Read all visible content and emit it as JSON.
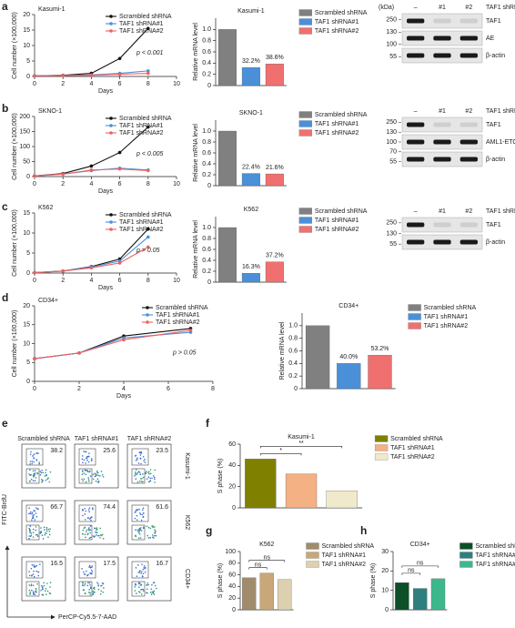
{
  "panel_labels": [
    "a",
    "b",
    "c",
    "d",
    "e",
    "f",
    "g",
    "h"
  ],
  "chart_data": [
    {
      "type": "line",
      "title": "Kasumi-1",
      "x_label": "Days",
      "y_label": "Cell number (×100,000)",
      "x": [
        0,
        2,
        4,
        6,
        8
      ],
      "xlim": [
        0,
        10
      ],
      "xticks": [
        0,
        2,
        4,
        6,
        8,
        10
      ],
      "ylim": [
        0,
        20
      ],
      "yticks": [
        0,
        5,
        10,
        15,
        20
      ],
      "legend": "upper right",
      "annotation": "p < 0.001",
      "series": [
        {
          "name": "Scrambled shRNA",
          "color": "#111111",
          "values": [
            0.2,
            0.4,
            1.0,
            5.8,
            15.5
          ]
        },
        {
          "name": "TAF1 shRNA#1",
          "color": "#4a90d9",
          "values": [
            0.2,
            0.3,
            0.5,
            1.0,
            1.8
          ]
        },
        {
          "name": "TAF1 shRNA#2",
          "color": "#f06060",
          "values": [
            0.2,
            0.3,
            0.4,
            0.7,
            1.0
          ]
        }
      ]
    },
    {
      "type": "bar",
      "title": "Kasumi-1",
      "y_label": "Relative mRNA level",
      "ylim": [
        0,
        1.2
      ],
      "yticks": [
        0,
        0.2,
        0.4,
        0.6,
        0.8,
        {
          "value": 1,
          "label": "1.0"
        }
      ],
      "legend": "right",
      "series": [
        {
          "name": "Scrambled shRNA",
          "color": "#808080",
          "values": [
            1.0
          ]
        },
        {
          "name": "TAF1 shRNA#1",
          "color": "#4a90d9",
          "values": [
            0.322
          ],
          "value_labels": [
            "32.2%"
          ]
        },
        {
          "name": "TAF1 shRNA#2",
          "color": "#f07070",
          "values": [
            0.386
          ],
          "value_labels": [
            "38.6%"
          ]
        }
      ]
    },
    {
      "type": "line",
      "title": "SKNO-1",
      "x_label": "Days",
      "y_label": "Cell number (×100,000)",
      "x": [
        0,
        2,
        4,
        6,
        8
      ],
      "xlim": [
        0,
        10
      ],
      "xticks": [
        0,
        2,
        4,
        6,
        8,
        10
      ],
      "ylim": [
        0,
        200
      ],
      "yticks": [
        0,
        50,
        100,
        150,
        200
      ],
      "legend": "upper right",
      "annotation": "p < 0.005",
      "series": [
        {
          "name": "Scrambled shRNA",
          "color": "#111111",
          "values": [
            2,
            10,
            35,
            80,
            165
          ]
        },
        {
          "name": "TAF1 shRNA#1",
          "color": "#4a90d9",
          "values": [
            2,
            8,
            20,
            28,
            22
          ]
        },
        {
          "name": "TAF1 shRNA#2",
          "color": "#f06060",
          "values": [
            2,
            8,
            22,
            25,
            20
          ]
        }
      ]
    },
    {
      "type": "bar",
      "title": "SKNO-1",
      "y_label": "Relative mRNA level",
      "ylim": [
        0,
        1.2
      ],
      "yticks": [
        0,
        0.2,
        0.4,
        0.6,
        0.8,
        {
          "value": 1,
          "label": "1.0"
        }
      ],
      "legend": "right",
      "series": [
        {
          "name": "Scrambled shRNA",
          "color": "#808080",
          "values": [
            1.0
          ]
        },
        {
          "name": "TAF1 shRNA#1",
          "color": "#4a90d9",
          "values": [
            0.224
          ],
          "value_labels": [
            "22.4%"
          ]
        },
        {
          "name": "TAF1 shRNA#2",
          "color": "#f07070",
          "values": [
            0.216
          ],
          "value_labels": [
            "21.6%"
          ]
        }
      ]
    },
    {
      "type": "line",
      "title": "K562",
      "x_label": "Days",
      "y_label": "Cell number (×100,000)",
      "x": [
        0,
        2,
        4,
        6,
        8
      ],
      "xlim": [
        0,
        10
      ],
      "xticks": [
        0,
        2,
        4,
        6,
        8,
        10
      ],
      "ylim": [
        0,
        15
      ],
      "yticks": [
        0,
        5,
        10,
        15
      ],
      "legend": "upper right",
      "annotation": "p > 0.05",
      "series": [
        {
          "name": "Scrambled shRNA",
          "color": "#111111",
          "values": [
            0.1,
            0.5,
            1.6,
            3.5,
            11
          ]
        },
        {
          "name": "TAF1 shRNA#1",
          "color": "#4a90d9",
          "values": [
            0.1,
            0.5,
            1.5,
            3,
            9
          ]
        },
        {
          "name": "TAF1 shRNA#2",
          "color": "#f06060",
          "values": [
            0.1,
            0.5,
            1.3,
            2.5,
            6.5
          ]
        }
      ]
    },
    {
      "type": "bar",
      "title": "K562",
      "y_label": "Relative mRNA level",
      "ylim": [
        0,
        1.2
      ],
      "yticks": [
        0,
        0.2,
        0.4,
        0.6,
        0.8,
        {
          "value": 1,
          "label": "1.0"
        }
      ],
      "legend": "right",
      "series": [
        {
          "name": "Scrambled shRNA",
          "color": "#808080",
          "values": [
            1.0
          ]
        },
        {
          "name": "TAF1 shRNA#1",
          "color": "#4a90d9",
          "values": [
            0.163
          ],
          "value_labels": [
            "16.3%"
          ]
        },
        {
          "name": "TAF1 shRNA#2",
          "color": "#f07070",
          "values": [
            0.372
          ],
          "value_labels": [
            "37.2%"
          ]
        }
      ]
    },
    {
      "type": "line",
      "title": "CD34+",
      "x_label": "Days",
      "y_label": "Cell number (×100,000)",
      "x": [
        0,
        2,
        4,
        7
      ],
      "xlim": [
        0,
        8
      ],
      "xticks": [
        0,
        2,
        4,
        6,
        8
      ],
      "ylim": [
        0,
        20
      ],
      "yticks": [
        0,
        5,
        10,
        15,
        20
      ],
      "legend": "upper right",
      "annotation": "p > 0.05",
      "series": [
        {
          "name": "Scrambled shRNA",
          "color": "#111111",
          "values": [
            6,
            7.5,
            12,
            14
          ]
        },
        {
          "name": "TAF1 shRNA#1",
          "color": "#4a90d9",
          "values": [
            6,
            7.5,
            11.5,
            13
          ]
        },
        {
          "name": "TAF1 shRNA#2",
          "color": "#f06060",
          "values": [
            6,
            7.5,
            11,
            13.5
          ]
        }
      ]
    },
    {
      "type": "bar",
      "title": "CD34+",
      "y_label": "Relative mRNA level",
      "ylim": [
        0,
        1.2
      ],
      "yticks": [
        0,
        0.2,
        0.4,
        0.6,
        0.8,
        {
          "value": 1,
          "label": "1.0"
        }
      ],
      "legend": "right",
      "series": [
        {
          "name": "Scrambled shRNA",
          "color": "#808080",
          "values": [
            1.0
          ]
        },
        {
          "name": "TAF1 shRNA#1",
          "color": "#4a90d9",
          "values": [
            0.4
          ],
          "value_labels": [
            "40.0%"
          ]
        },
        {
          "name": "TAF1 shRNA#2",
          "color": "#f07070",
          "values": [
            0.532
          ],
          "value_labels": [
            "53.2%"
          ]
        }
      ]
    },
    {
      "type": "bar",
      "title": "Kasumi-1",
      "y_label": "S phase (%)",
      "ylim": [
        0,
        60
      ],
      "yticks": [
        0,
        20,
        40,
        60
      ],
      "legend": "right",
      "annotations": [
        "*",
        "**"
      ],
      "series": [
        {
          "name": "Scrambled shRNA",
          "color": "#808000",
          "values": [
            46
          ]
        },
        {
          "name": "TAF1 shRNA#1",
          "color": "#f4b183",
          "values": [
            32
          ]
        },
        {
          "name": "TAF1 shRNA#2",
          "color": "#efeacb",
          "values": [
            16
          ]
        }
      ]
    },
    {
      "type": "bar",
      "title": "K562",
      "y_label": "S phase (%)",
      "ylim": [
        0,
        100
      ],
      "yticks": [
        0,
        20,
        40,
        60,
        80,
        100
      ],
      "legend": "right",
      "annotations": [
        "ns",
        "ns"
      ],
      "series": [
        {
          "name": "Scrambled shRNA",
          "color": "#a08c6c",
          "values": [
            55
          ]
        },
        {
          "name": "TAF1 shRNA#1",
          "color": "#c8a878",
          "values": [
            63
          ]
        },
        {
          "name": "TAF1 shRNA#2",
          "color": "#ddd0b0",
          "values": [
            52
          ]
        }
      ]
    },
    {
      "type": "bar",
      "title": "CD34+",
      "y_label": "S phase (%)",
      "ylim": [
        0,
        30
      ],
      "yticks": [
        0,
        10,
        20,
        30
      ],
      "legend": "right",
      "annotations": [
        "ns",
        "ns"
      ],
      "series": [
        {
          "name": "Scrambled shRNA",
          "color": "#0c4f28",
          "values": [
            14
          ]
        },
        {
          "name": "TAF1 shRNA#1",
          "color": "#2f7f7f",
          "values": [
            11
          ]
        },
        {
          "name": "TAF1 shRNA#2",
          "color": "#3cb88c",
          "values": [
            16
          ]
        }
      ]
    }
  ],
  "blots": [
    {
      "unit": "(kDa)",
      "header": "TAF1 shRNA",
      "lanes": [
        "–",
        "#1",
        "#2"
      ],
      "markers": [
        "250",
        "130",
        "100",
        "55"
      ],
      "proteins": [
        "TAF1",
        "AE",
        "β-actin"
      ]
    },
    {
      "header": "TAF1 shRNA",
      "lanes": [
        "–",
        "#1",
        "#2"
      ],
      "markers": [
        "250",
        "130",
        "100",
        "70",
        "55"
      ],
      "proteins": [
        "TAF1",
        "AML1-ETO",
        "β-actin"
      ]
    },
    {
      "header": "TAF1 shRNA",
      "lanes": [
        "–",
        "#1",
        "#2"
      ],
      "markers": [
        "250",
        "130",
        "55"
      ],
      "proteins": [
        "TAF1",
        "β-actin"
      ]
    }
  ],
  "flow": {
    "columns": [
      "Scrambled shRNA",
      "TAF1 shRNA#1",
      "TAF1 shRNA#2"
    ],
    "rows": [
      "Kasumi-1",
      "K562",
      "CD34+"
    ],
    "s_phase": [
      [
        "38.2",
        "25.6",
        "23.5"
      ],
      [
        "66.7",
        "74.4",
        "61.6"
      ],
      [
        "16.5",
        "17.5",
        "16.7"
      ]
    ],
    "y_axis": "FITC-BrdU",
    "x_axis": "PerCP-Cy5.5-7-AAD"
  }
}
